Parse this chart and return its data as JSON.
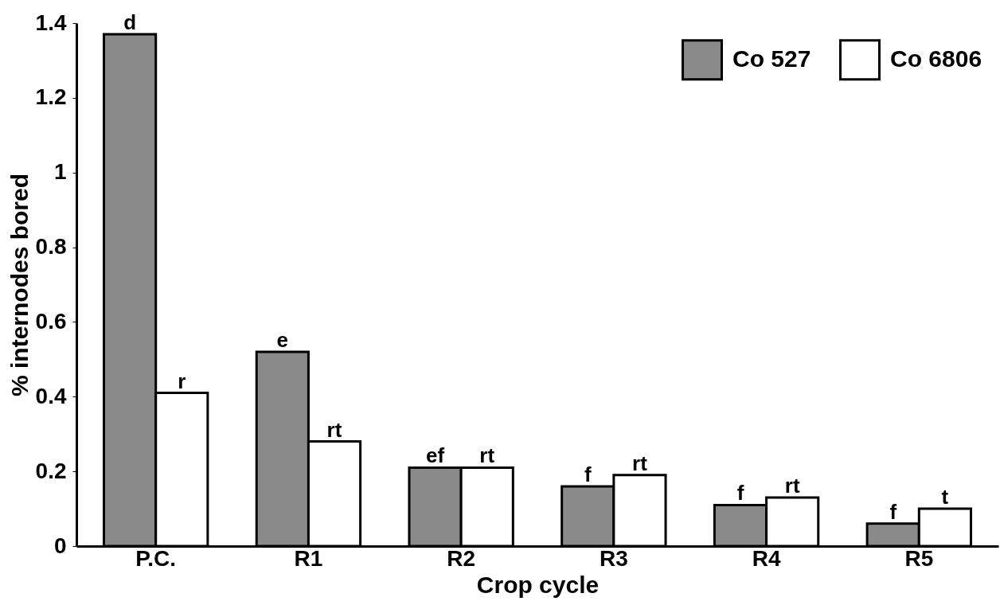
{
  "chart_data": {
    "type": "bar",
    "xlabel": "Crop cycle",
    "ylabel": "% internodes bored",
    "categories": [
      "P.C.",
      "R1",
      "R2",
      "R3",
      "R4",
      "R5"
    ],
    "series": [
      {
        "name": "Co 527",
        "color": "#8a8a8a",
        "values": [
          1.37,
          0.52,
          0.21,
          0.16,
          0.11,
          0.06
        ],
        "value_labels": [
          "d",
          "e",
          "ef",
          "f",
          "f",
          "f"
        ]
      },
      {
        "name": "Co 6806",
        "color": "#ffffff",
        "values": [
          0.41,
          0.28,
          0.21,
          0.19,
          0.13,
          0.1
        ],
        "value_labels": [
          "r",
          "rt",
          "rt",
          "rt",
          "rt",
          "t"
        ]
      }
    ],
    "ylim": [
      0,
      1.4
    ],
    "yticks": [
      0,
      0.2,
      0.4,
      0.6,
      0.8,
      1,
      1.2,
      1.4
    ],
    "grid": false,
    "legend": "top right"
  }
}
